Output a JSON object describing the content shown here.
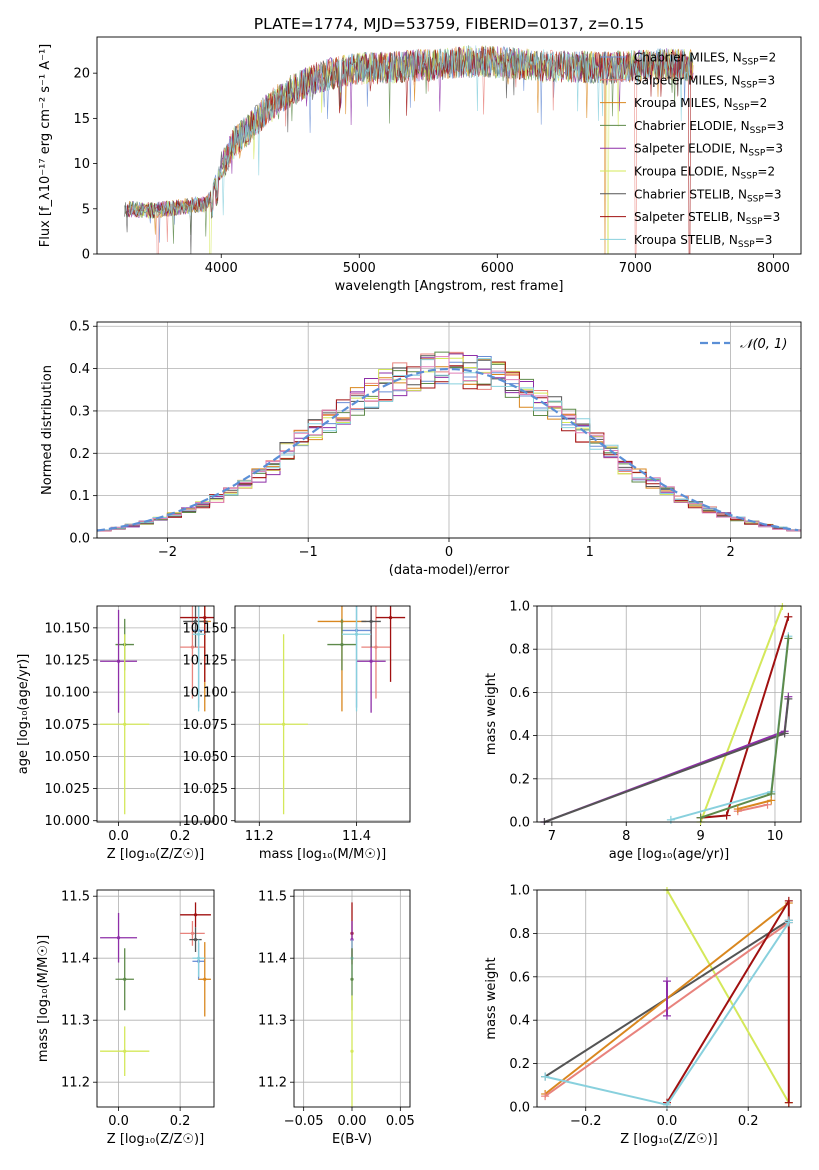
{
  "figure_title": "PLATE=1774, MJD=53759, FIBERID=0137, z=0.15",
  "colors": {
    "Chabrier MILES": "#6b8fd6",
    "Salpeter MILES": "#e8837d",
    "Kroupa MILES": "#d9871f",
    "Chabrier ELODIE": "#5e8a4a",
    "Salpeter ELODIE": "#8e2fa8",
    "Kroupa ELODIE": "#d4e85a",
    "Chabrier STELIB": "#555555",
    "Salpeter STELIB": "#a01010",
    "Kroupa STELIB": "#88d0dd",
    "pink": "#e080b8",
    "gauss": "#5b8fd6"
  },
  "chart_data": [
    {
      "id": "spectrum",
      "type": "line",
      "title": "PLATE=1774, MJD=53759, FIBERID=0137, z=0.15",
      "xlabel": "wavelength [Angstrom, rest frame]",
      "ylabel": "Flux [f_λ10⁻¹⁷ erg cm⁻² s⁻¹ A⁻¹]",
      "xlim": [
        3100,
        8200
      ],
      "ylim": [
        0,
        24
      ],
      "xticks": [
        4000,
        5000,
        6000,
        7000,
        8000
      ],
      "yticks": [
        0,
        5,
        10,
        15,
        20
      ],
      "legend_position": "top-right",
      "series": [
        {
          "name": "Chabrier MILES, N_SSP=2"
        },
        {
          "name": "Salpeter MILES, N_SSP=3"
        },
        {
          "name": "Kroupa MILES, N_SSP=2"
        },
        {
          "name": "Chabrier ELODIE, N_SSP=3"
        },
        {
          "name": "Salpeter ELODIE, N_SSP=3"
        },
        {
          "name": "Kroupa ELODIE, N_SSP=2"
        },
        {
          "name": "Chabrier STELIB, N_SSP=3"
        },
        {
          "name": "Salpeter STELIB, N_SSP=3"
        },
        {
          "name": "Kroupa STELIB, N_SSP=3"
        }
      ],
      "continuum": {
        "x": [
          3300,
          3500,
          3700,
          3900,
          4000,
          4100,
          4200,
          4300,
          4400,
          4500,
          4600,
          4700,
          4800,
          5000,
          5200,
          5400,
          5600,
          5800,
          6000,
          6200,
          6400,
          6600,
          6800,
          7000,
          7200,
          7400
        ],
        "y": [
          5.0,
          4.8,
          5.2,
          5.6,
          9.5,
          12.5,
          13.8,
          15.5,
          17.0,
          18.0,
          18.8,
          19.5,
          20.0,
          20.5,
          20.6,
          20.8,
          21.0,
          21.3,
          21.2,
          21.0,
          20.8,
          20.7,
          20.6,
          20.8,
          21.0,
          20.8
        ]
      }
    },
    {
      "id": "residuals",
      "type": "bar",
      "xlabel": "(data-model)/error",
      "ylabel": "Normed distribution",
      "xlim": [
        -2.5,
        2.5
      ],
      "ylim": [
        0,
        0.51
      ],
      "xticks": [
        -2,
        -1,
        0,
        1,
        2
      ],
      "yticks": [
        0.0,
        0.1,
        0.2,
        0.3,
        0.4,
        0.5
      ],
      "legend": "𝒩(0, 1)",
      "legend_position": "top-right",
      "bin_width": 0.1,
      "grid": true
    },
    {
      "id": "age_vs_Z",
      "type": "scatter",
      "xlabel": "Z [log₁₀(Z/Z☉)]",
      "ylabel": "age  [log₁₀(age/yr)]",
      "xlim": [
        -0.07,
        0.31
      ],
      "ylim": [
        9.999,
        10.167
      ],
      "xticks": [
        0.0,
        0.2
      ],
      "yticks": [
        10.0,
        10.025,
        10.05,
        10.075,
        10.1,
        10.125,
        10.15
      ],
      "points": [
        {
          "c": "Chabrier MILES",
          "x": 0.26,
          "y": 10.148,
          "ex": 0.02,
          "ey": 0.06
        },
        {
          "c": "Salpeter MILES",
          "x": 0.24,
          "y": 10.135,
          "ex": 0.04,
          "ey": 0.04
        },
        {
          "c": "Kroupa MILES",
          "x": 0.28,
          "y": 10.155,
          "ex": 0.02,
          "ey": 0.07
        },
        {
          "c": "Chabrier ELODIE",
          "x": 0.02,
          "y": 10.137,
          "ex": 0.03,
          "ey": 0.02
        },
        {
          "c": "Salpeter ELODIE",
          "x": 0.0,
          "y": 10.124,
          "ex": 0.06,
          "ey": 0.04
        },
        {
          "c": "Kroupa ELODIE",
          "x": 0.02,
          "y": 10.075,
          "ex": 0.08,
          "ey": 0.07
        },
        {
          "c": "Chabrier STELIB",
          "x": 0.25,
          "y": 10.155,
          "ex": 0.04,
          "ey": 0.02
        },
        {
          "c": "Salpeter STELIB",
          "x": 0.28,
          "y": 10.158,
          "ex": 0.08,
          "ey": 0.05
        },
        {
          "c": "Kroupa STELIB",
          "x": 0.26,
          "y": 10.145,
          "ex": 0.02,
          "ey": 0.06
        }
      ]
    },
    {
      "id": "age_vs_mass",
      "type": "scatter",
      "xlabel": "mass [log₁₀(M/M☉)]",
      "ylabel": "",
      "xlim": [
        11.15,
        11.51
      ],
      "ylim": [
        9.999,
        10.167
      ],
      "xticks": [
        11.2,
        11.4
      ],
      "yticks": [
        10.0,
        10.025,
        10.05,
        10.075,
        10.1,
        10.125,
        10.15
      ],
      "points": [
        {
          "c": "Chabrier MILES",
          "x": 11.4,
          "y": 10.148,
          "ex": 0.03,
          "ey": 0.06
        },
        {
          "c": "Salpeter MILES",
          "x": 11.44,
          "y": 10.135,
          "ex": 0.03,
          "ey": 0.04
        },
        {
          "c": "Kroupa MILES",
          "x": 11.37,
          "y": 10.155,
          "ex": 0.05,
          "ey": 0.07
        },
        {
          "c": "Chabrier ELODIE",
          "x": 11.37,
          "y": 10.137,
          "ex": 0.03,
          "ey": 0.02
        },
        {
          "c": "Salpeter ELODIE",
          "x": 11.43,
          "y": 10.124,
          "ex": 0.03,
          "ey": 0.04
        },
        {
          "c": "Kroupa ELODIE",
          "x": 11.25,
          "y": 10.075,
          "ex": 0.05,
          "ey": 0.07
        },
        {
          "c": "Chabrier STELIB",
          "x": 11.43,
          "y": 10.155,
          "ex": 0.02,
          "ey": 0.02
        },
        {
          "c": "Salpeter STELIB",
          "x": 11.47,
          "y": 10.158,
          "ex": 0.03,
          "ey": 0.05
        },
        {
          "c": "Kroupa STELIB",
          "x": 11.4,
          "y": 10.145,
          "ex": 0.03,
          "ey": 0.06
        }
      ]
    },
    {
      "id": "weight_vs_age",
      "type": "line",
      "xlabel": "age  [log₁₀(age/yr)]",
      "ylabel": "mass weight",
      "xlim": [
        6.8,
        10.35
      ],
      "ylim": [
        0,
        1.0
      ],
      "xticks": [
        7,
        8,
        9,
        10
      ],
      "yticks": [
        0.0,
        0.2,
        0.4,
        0.6,
        0.8,
        1.0
      ],
      "grid": true,
      "series": [
        {
          "c": "Kroupa ELODIE",
          "x": [
            9.0,
            10.1
          ],
          "y": [
            0.0,
            1.0
          ]
        },
        {
          "c": "Salpeter STELIB",
          "x": [
            9.0,
            9.35,
            10.18
          ],
          "y": [
            0.02,
            0.03,
            0.95
          ]
        },
        {
          "c": "Salpeter ELODIE",
          "x": [
            6.9,
            10.13,
            10.18
          ],
          "y": [
            0.0,
            0.42,
            0.58
          ]
        },
        {
          "c": "Chabrier STELIB",
          "x": [
            6.9,
            10.13,
            10.18
          ],
          "y": [
            0.0,
            0.41,
            0.57
          ]
        },
        {
          "c": "Kroupa STELIB",
          "x": [
            8.6,
            9.95,
            10.18
          ],
          "y": [
            0.01,
            0.14,
            0.86
          ]
        },
        {
          "c": "Chabrier ELODIE",
          "x": [
            9.0,
            9.95,
            10.18
          ],
          "y": [
            0.02,
            0.13,
            0.85
          ]
        },
        {
          "c": "Salpeter MILES",
          "x": [
            9.5,
            9.9
          ],
          "y": [
            0.05,
            0.08
          ]
        },
        {
          "c": "Kroupa MILES",
          "x": [
            9.5,
            9.95
          ],
          "y": [
            0.06,
            0.1
          ]
        }
      ]
    },
    {
      "id": "mass_vs_Z",
      "type": "scatter",
      "xlabel": "Z [log₁₀(Z/Z☉)]",
      "ylabel": "mass [log₁₀(M/M☉)]",
      "xlim": [
        -0.07,
        0.31
      ],
      "ylim": [
        11.16,
        11.51
      ],
      "xticks": [
        0.0,
        0.2
      ],
      "yticks": [
        11.2,
        11.3,
        11.4,
        11.5
      ],
      "points": [
        {
          "c": "Chabrier MILES",
          "x": 0.26,
          "y": 11.395,
          "ex": 0.02,
          "ey": 0.03
        },
        {
          "c": "Salpeter MILES",
          "x": 0.24,
          "y": 11.44,
          "ex": 0.04,
          "ey": 0.02
        },
        {
          "c": "Kroupa MILES",
          "x": 0.28,
          "y": 11.366,
          "ex": 0.02,
          "ey": 0.06
        },
        {
          "c": "Chabrier ELODIE",
          "x": 0.02,
          "y": 11.366,
          "ex": 0.03,
          "ey": 0.05
        },
        {
          "c": "Salpeter ELODIE",
          "x": 0.0,
          "y": 11.433,
          "ex": 0.06,
          "ey": 0.04
        },
        {
          "c": "Kroupa ELODIE",
          "x": 0.02,
          "y": 11.25,
          "ex": 0.08,
          "ey": 0.04
        },
        {
          "c": "Chabrier STELIB",
          "x": 0.25,
          "y": 11.43,
          "ex": 0.02,
          "ey": 0.02
        },
        {
          "c": "Salpeter STELIB",
          "x": 0.25,
          "y": 11.47,
          "ex": 0.05,
          "ey": 0.02
        },
        {
          "c": "Kroupa STELIB",
          "x": 0.26,
          "y": 11.4,
          "ex": 0.02,
          "ey": 0.03
        }
      ]
    },
    {
      "id": "mass_vs_EBV",
      "type": "scatter",
      "xlabel": "E(B-V)",
      "ylabel": "",
      "xlim": [
        -0.06,
        0.06
      ],
      "ylim": [
        11.16,
        11.51
      ],
      "xticks": [
        -0.05,
        0.0,
        0.05
      ],
      "yticks": [
        11.2,
        11.3,
        11.4,
        11.5
      ],
      "points": [
        {
          "c": "Salpeter STELIB",
          "x": 0.0,
          "y": 11.44,
          "ex": 0.0,
          "ey": 0.05
        },
        {
          "c": "Salpeter ELODIE",
          "x": 0.0,
          "y": 11.43,
          "ex": 0.0,
          "ey": 0.03
        },
        {
          "c": "Kroupa STELIB",
          "x": 0.0,
          "y": 11.4,
          "ex": 0.0,
          "ey": 0.03
        },
        {
          "c": "Chabrier ELODIE",
          "x": 0.0,
          "y": 11.366,
          "ex": 0.0,
          "ey": 0.05
        },
        {
          "c": "Kroupa ELODIE",
          "x": 0.0,
          "y": 11.25,
          "ex": 0.0,
          "ey": 0.09
        }
      ]
    },
    {
      "id": "weight_vs_Z",
      "type": "line",
      "xlabel": "Z [log₁₀(Z/Z☉)]",
      "ylabel": "mass weight",
      "xlim": [
        -0.32,
        0.33
      ],
      "ylim": [
        0,
        1.0
      ],
      "xticks": [
        -0.2,
        0.0,
        0.2
      ],
      "yticks": [
        0.0,
        0.2,
        0.4,
        0.6,
        0.8,
        1.0
      ],
      "grid": true,
      "series": [
        {
          "c": "Kroupa ELODIE",
          "x": [
            0.0,
            0.3
          ],
          "y": [
            1.0,
            0.02
          ]
        },
        {
          "c": "Chabrier STELIB",
          "x": [
            -0.3,
            0.3
          ],
          "y": [
            0.14,
            0.86
          ]
        },
        {
          "c": "Kroupa MILES",
          "x": [
            -0.3,
            0.3
          ],
          "y": [
            0.06,
            0.94
          ]
        },
        {
          "c": "Salpeter MILES",
          "x": [
            -0.3,
            0.3
          ],
          "y": [
            0.05,
            0.85
          ]
        },
        {
          "c": "Salpeter STELIB",
          "x": [
            0.0,
            0.3,
            0.3
          ],
          "y": [
            0.02,
            0.95,
            0.02
          ]
        },
        {
          "c": "Salpeter ELODIE",
          "x": [
            0.0,
            0.0
          ],
          "y": [
            0.42,
            0.58
          ]
        },
        {
          "c": "Kroupa STELIB",
          "x": [
            -0.3,
            0.0,
            0.3,
            0.3
          ],
          "y": [
            0.14,
            0.01,
            0.85,
            0.86
          ]
        }
      ]
    }
  ]
}
